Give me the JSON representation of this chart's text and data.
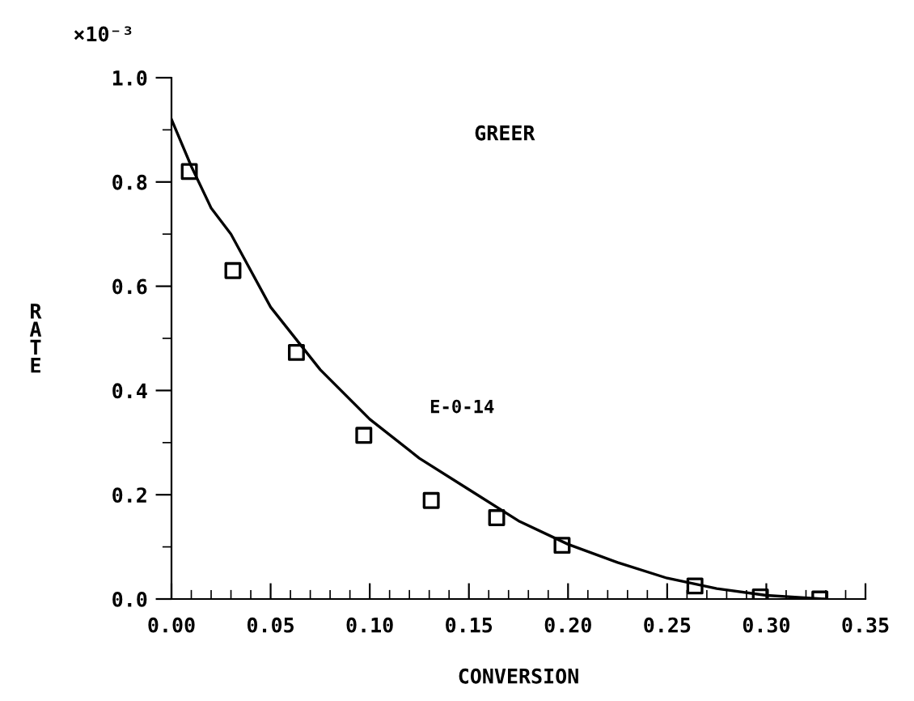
{
  "chart_data": {
    "type": "scatter",
    "title": "GREER",
    "xlabel": "CONVERSION",
    "ylabel": "RATE",
    "annotations": [
      "×10⁻³",
      "E-0-14"
    ],
    "xlim": [
      0,
      0.35
    ],
    "xticks": [
      {
        "value": 0,
        "label": "0.00"
      },
      0.05,
      {
        "value": 0.1,
        "label": "0.10"
      },
      0.15,
      {
        "value": 0.2,
        "label": "0.20"
      },
      0.25,
      {
        "value": 0.3,
        "label": "0.30"
      },
      0.35
    ],
    "ylim": [
      0,
      1.0
    ],
    "yticks": [
      {
        "value": 0,
        "label": "0.0"
      },
      0.2,
      0.4,
      0.6,
      0.8,
      {
        "value": 1.0,
        "label": "1.0"
      }
    ],
    "grid": false,
    "legend": false,
    "series": [
      {
        "color": "#000000",
        "marker": "square",
        "x": [
          0.009,
          0.031,
          0.063,
          0.097,
          0.131,
          0.164,
          0.197,
          0.264,
          0.297,
          0.327
        ],
        "values": [
          0.82,
          0.63,
          0.473,
          0.314,
          0.189,
          0.156,
          0.103,
          0.025,
          0.004,
          0.0
        ]
      },
      {
        "type": "line",
        "color": "#000000",
        "marker": "none",
        "line_style": "solid",
        "x": [
          0,
          0.01,
          0.02,
          0.03,
          0.05,
          0.075,
          0.1,
          0.125,
          0.15,
          0.175,
          0.2,
          0.225,
          0.25,
          0.275,
          0.3,
          0.33
        ],
        "values": [
          0.92,
          0.83,
          0.75,
          0.7,
          0.56,
          0.44,
          0.345,
          0.27,
          0.21,
          0.15,
          0.105,
          0.07,
          0.04,
          0.02,
          0.007,
          0.0
        ]
      }
    ]
  }
}
